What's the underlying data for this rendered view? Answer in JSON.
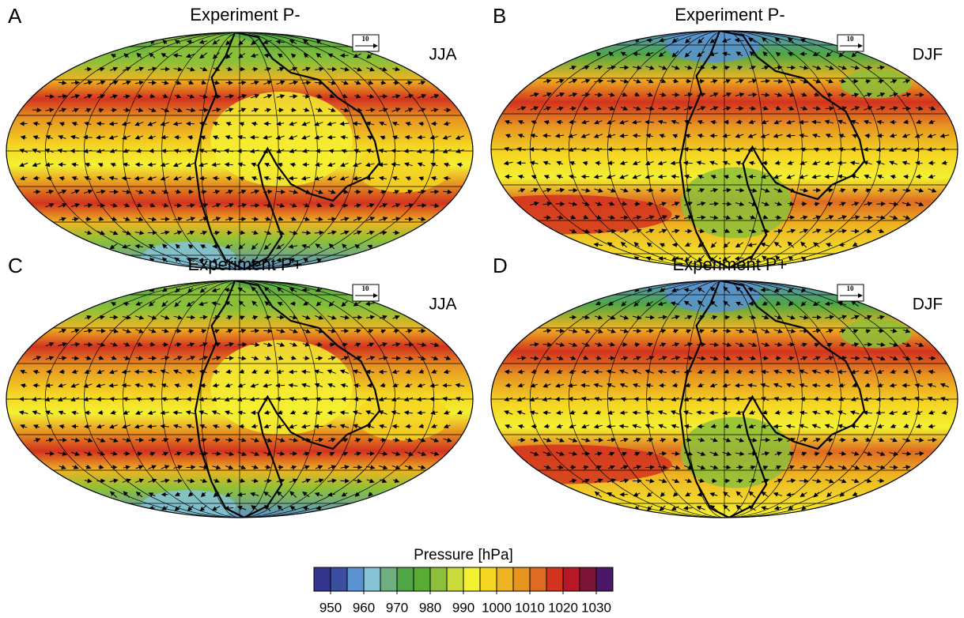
{
  "panels": [
    {
      "label": "A",
      "title": "Experiment P-",
      "season": "JJA",
      "reference_vector": 10
    },
    {
      "label": "B",
      "title": "Experiment P-",
      "season": "DJF",
      "reference_vector": 10
    },
    {
      "label": "C",
      "title": "Experiment P+",
      "season": "JJA",
      "reference_vector": 10
    },
    {
      "label": "D",
      "title": "Experiment P+",
      "season": "DJF",
      "reference_vector": 10
    }
  ],
  "colorbar": {
    "title": "Pressure [hPa]",
    "ticks": [
      950,
      960,
      970,
      980,
      990,
      1000,
      1010,
      1020,
      1030
    ],
    "colors": [
      "#34348c",
      "#3a4fa0",
      "#5b92d0",
      "#85c3d5",
      "#6fae80",
      "#4ea744",
      "#5aab35",
      "#8cc03a",
      "#c8db3a",
      "#f4f032",
      "#f5d623",
      "#eeb422",
      "#e69322",
      "#de6b22",
      "#d2331f",
      "#b81826",
      "#7c1438",
      "#4a1866"
    ]
  }
}
